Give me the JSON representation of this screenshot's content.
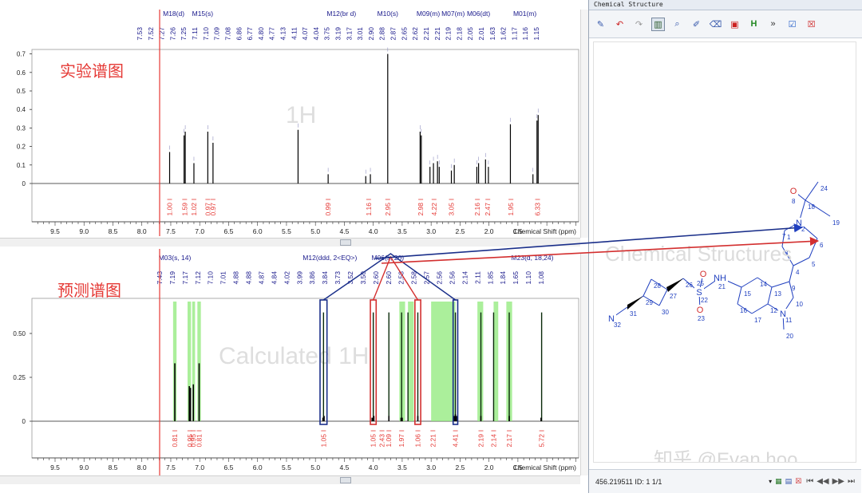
{
  "experimental": {
    "label": "实验谱图",
    "watermark": "1H",
    "x_axis_title": "Chemical Shift (ppm)",
    "x_ticks": [
      "9.5",
      "9.0",
      "8.5",
      "8.0",
      "7.5",
      "7.0",
      "6.5",
      "6.0",
      "5.5",
      "5.0",
      "4.5",
      "4.0",
      "3.5",
      "3.0",
      "2.5",
      "2.0",
      "1.5"
    ],
    "y_ticks": [
      "0.7",
      "0.6",
      "0.5",
      "0.4",
      "0.3",
      "0.2",
      "0.1",
      "0"
    ],
    "multiplets": [
      {
        "label": "M18(d)",
        "ppm": 7.45
      },
      {
        "label": "M15(s)",
        "ppm": 6.95
      },
      {
        "label": "M12(br d)",
        "ppm": 4.55
      },
      {
        "label": "M10(s)",
        "ppm": 3.75
      },
      {
        "label": "M09(m)",
        "ppm": 3.05
      },
      {
        "label": "M07(m)",
        "ppm": 2.62
      },
      {
        "label": "M06(dt)",
        "ppm": 2.18
      },
      {
        "label": "M01(m)",
        "ppm": 1.38
      }
    ],
    "peak_labels": [
      "7.53",
      "7.52",
      "7.27",
      "7.26",
      "7.25",
      "7.11",
      "7.10",
      "7.09",
      "7.08",
      "6.86",
      "6.77",
      "4.80",
      "4.77",
      "4.13",
      "4.11",
      "4.07",
      "4.04",
      "3.75",
      "3.19",
      "3.17",
      "3.01",
      "2.90",
      "2.88",
      "2.87",
      "2.65",
      "2.62",
      "2.21",
      "2.21",
      "2.19",
      "2.18",
      "2.05",
      "2.01",
      "1.63",
      "1.62",
      "1.17",
      "1.16",
      "1.15"
    ],
    "integrals": [
      {
        "ppm": 7.52,
        "value": "1.00"
      },
      {
        "ppm": 7.26,
        "value": "1.59"
      },
      {
        "ppm": 7.1,
        "value": "1.02"
      },
      {
        "ppm": 6.86,
        "value": "0.97"
      },
      {
        "ppm": 6.77,
        "value": "0.97"
      },
      {
        "ppm": 4.78,
        "value": "0.99"
      },
      {
        "ppm": 4.08,
        "value": "1.16"
      },
      {
        "ppm": 3.75,
        "value": "2.95"
      },
      {
        "ppm": 3.18,
        "value": "2.98"
      },
      {
        "ppm": 2.95,
        "value": "4.22"
      },
      {
        "ppm": 2.65,
        "value": "3.05"
      },
      {
        "ppm": 2.2,
        "value": "2.16"
      },
      {
        "ppm": 2.02,
        "value": "2.47"
      },
      {
        "ppm": 1.62,
        "value": "1.95"
      },
      {
        "ppm": 1.16,
        "value": "6.33"
      }
    ],
    "peaks": [
      {
        "ppm": 7.52,
        "h": 0.17
      },
      {
        "ppm": 7.27,
        "h": 0.26
      },
      {
        "ppm": 7.25,
        "h": 0.28
      },
      {
        "ppm": 7.1,
        "h": 0.11
      },
      {
        "ppm": 6.86,
        "h": 0.28
      },
      {
        "ppm": 6.77,
        "h": 0.22
      },
      {
        "ppm": 5.3,
        "h": 0.29
      },
      {
        "ppm": 4.78,
        "h": 0.05
      },
      {
        "ppm": 4.13,
        "h": 0.04
      },
      {
        "ppm": 4.05,
        "h": 0.05
      },
      {
        "ppm": 3.75,
        "h": 0.7
      },
      {
        "ppm": 3.19,
        "h": 0.28
      },
      {
        "ppm": 3.17,
        "h": 0.26
      },
      {
        "ppm": 3.02,
        "h": 0.09
      },
      {
        "ppm": 2.96,
        "h": 0.11
      },
      {
        "ppm": 2.89,
        "h": 0.12
      },
      {
        "ppm": 2.86,
        "h": 0.09
      },
      {
        "ppm": 2.65,
        "h": 0.07
      },
      {
        "ppm": 2.6,
        "h": 0.1
      },
      {
        "ppm": 2.21,
        "h": 0.09
      },
      {
        "ppm": 2.18,
        "h": 0.11
      },
      {
        "ppm": 2.06,
        "h": 0.13
      },
      {
        "ppm": 2.01,
        "h": 0.09
      },
      {
        "ppm": 1.63,
        "h": 0.32
      },
      {
        "ppm": 1.24,
        "h": 0.05
      },
      {
        "ppm": 1.17,
        "h": 0.34
      },
      {
        "ppm": 1.15,
        "h": 0.37
      }
    ]
  },
  "calculated": {
    "label": "预测谱图",
    "watermark": "Calculated 1H",
    "x_axis_title": "Chemical Shift (ppm)",
    "x_ticks": [
      "9.5",
      "9.0",
      "8.5",
      "8.0",
      "7.5",
      "7.0",
      "6.5",
      "6.0",
      "5.5",
      "5.0",
      "4.5",
      "4.0",
      "3.5",
      "3.0",
      "2.5",
      "2.0",
      "1.5"
    ],
    "y_ticks": [
      "0.50",
      "0.25",
      "0"
    ],
    "multiplets": [
      {
        "label": "M03(s, 14)",
        "ppm": 7.43
      },
      {
        "label": "M12(ddd, 2<EQ>)",
        "ppm": 4.75
      },
      {
        "label": "M06(s, 20)",
        "ppm": 3.75
      },
      {
        "label": "M23(d, 18,24)",
        "ppm": 1.25
      }
    ],
    "peak_labels": [
      "7.43",
      "7.19",
      "7.17",
      "7.12",
      "7.10",
      "7.01",
      "4.88",
      "4.88",
      "4.87",
      "4.84",
      "4.02",
      "3.99",
      "3.86",
      "3.84",
      "3.73",
      "3.52",
      "3.50",
      "2.60",
      "2.60",
      "2.58",
      "2.58",
      "2.57",
      "2.56",
      "2.56",
      "2.14",
      "2.11",
      "1.85",
      "1.84",
      "1.65",
      "1.10",
      "1.08"
    ],
    "integrals": [
      {
        "ppm": 7.43,
        "value": "0.81"
      },
      {
        "ppm": 7.17,
        "value": "0.95"
      },
      {
        "ppm": 7.11,
        "value": "0.95"
      },
      {
        "ppm": 7.01,
        "value": "0.81"
      },
      {
        "ppm": 4.86,
        "value": "1.05"
      },
      {
        "ppm": 4.0,
        "value": "1.05"
      },
      {
        "ppm": 3.85,
        "value": "2.43"
      },
      {
        "ppm": 3.73,
        "value": "1.09"
      },
      {
        "ppm": 3.51,
        "value": "1.97"
      },
      {
        "ppm": 3.23,
        "value": "1.06"
      },
      {
        "ppm": 2.97,
        "value": "2.21"
      },
      {
        "ppm": 2.58,
        "value": "4.41"
      },
      {
        "ppm": 2.14,
        "value": "2.19"
      },
      {
        "ppm": 1.92,
        "value": "2.14"
      },
      {
        "ppm": 1.65,
        "value": "2.17"
      },
      {
        "ppm": 1.09,
        "value": "5.72"
      }
    ],
    "highlight_bands": [
      [
        7.46,
        7.4
      ],
      [
        7.21,
        7.15
      ],
      [
        7.13,
        7.08
      ],
      [
        7.04,
        6.98
      ],
      [
        3.55,
        3.45
      ],
      [
        3.4,
        3.3
      ],
      [
        3.0,
        2.58
      ],
      [
        2.2,
        2.1
      ],
      [
        1.92,
        1.84
      ],
      [
        1.7,
        1.6
      ]
    ],
    "peaks": [
      {
        "ppm": 7.43,
        "h": 0.33
      },
      {
        "ppm": 7.18,
        "h": 0.2
      },
      {
        "ppm": 7.16,
        "h": 0.19
      },
      {
        "ppm": 7.11,
        "h": 0.21
      },
      {
        "ppm": 7.01,
        "h": 0.33
      },
      {
        "ppm": 4.87,
        "h": 0.02
      },
      {
        "ppm": 4.85,
        "h": 0.03
      },
      {
        "ppm": 4.02,
        "h": 0.02
      },
      {
        "ppm": 3.99,
        "h": 0.03
      },
      {
        "ppm": 3.73,
        "h": 0.03
      },
      {
        "ppm": 3.52,
        "h": 0.02
      },
      {
        "ppm": 3.5,
        "h": 0.02
      },
      {
        "ppm": 3.23,
        "h": 0.03
      },
      {
        "ppm": 2.6,
        "h": 0.03
      },
      {
        "ppm": 2.58,
        "h": 0.04
      },
      {
        "ppm": 2.56,
        "h": 0.03
      },
      {
        "ppm": 2.14,
        "h": 0.03
      },
      {
        "ppm": 1.65,
        "h": 0.03
      },
      {
        "ppm": 1.1,
        "h": 0.02
      }
    ],
    "tall_lines": [
      {
        "ppm": 4.86,
        "h": 0.62
      },
      {
        "ppm": 4.0,
        "h": 0.62
      },
      {
        "ppm": 3.73,
        "h": 0.62
      },
      {
        "ppm": 3.51,
        "h": 0.62
      },
      {
        "ppm": 3.4,
        "h": 0.62
      },
      {
        "ppm": 3.23,
        "h": 0.62
      },
      {
        "ppm": 2.58,
        "h": 0.62
      },
      {
        "ppm": 2.14,
        "h": 0.62
      },
      {
        "ppm": 1.92,
        "h": 0.62
      },
      {
        "ppm": 1.65,
        "h": 0.62
      },
      {
        "ppm": 1.09,
        "h": 0.62
      }
    ]
  },
  "structure": {
    "panel_title": "Chemical Structure",
    "watermark": "Chemical Structures",
    "status_text": "456.219511  ID: 1  1/1",
    "footer_watermark": "知乎 @Evan hoo",
    "atoms": [
      {
        "id": "O",
        "label": "O"
      },
      {
        "id": "N2",
        "label": "N"
      },
      {
        "id": "NH",
        "label": "NH"
      },
      {
        "id": "S",
        "label": "S"
      },
      {
        "id": "O22",
        "label": "O"
      },
      {
        "id": "O23",
        "label": "O"
      },
      {
        "id": "N11",
        "label": "N"
      },
      {
        "id": "N32",
        "label": "N"
      }
    ],
    "numbers": [
      "1",
      "2",
      "3",
      "4",
      "5",
      "6",
      "7",
      "8",
      "9",
      "10",
      "11",
      "12",
      "13",
      "14",
      "15",
      "16",
      "17",
      "18",
      "19",
      "20",
      "21",
      "22",
      "23",
      "24",
      "25",
      "26",
      "27",
      "28",
      "29",
      "30",
      "31",
      "32"
    ]
  },
  "colors": {
    "axis": "#333333",
    "peak_line": "#000000",
    "multiplet": "#1a1a8c",
    "integral": "#e53935",
    "band": "#8fea7a",
    "box_blue": "#1a2f8a",
    "box_red": "#d32f2f",
    "structure_blue": "#1f3fbf",
    "structure_red": "#d32f2f",
    "cursor": "#e53935"
  }
}
